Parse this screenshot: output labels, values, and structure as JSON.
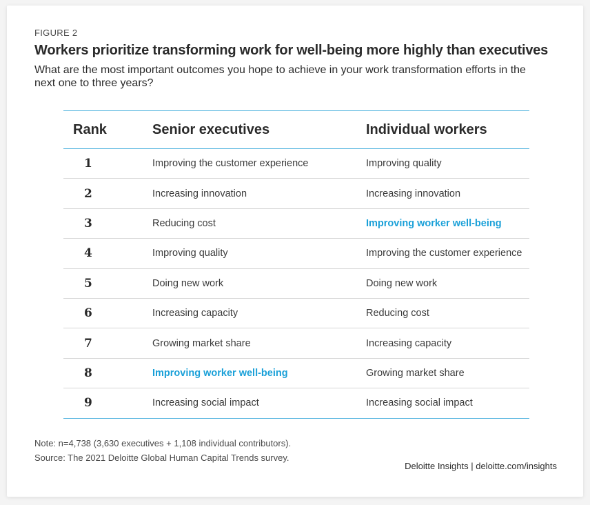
{
  "figure_label": "FIGURE 2",
  "title": "Workers prioritize transforming work for well-being more highly than executives",
  "subtitle": "What are the most important outcomes you hope to achieve in your work transformation efforts in the next one to three years?",
  "table": {
    "headers": {
      "rank": "Rank",
      "executives": "Senior executives",
      "workers": "Individual workers"
    },
    "highlight_color": "#1aa0d8",
    "rows": [
      {
        "rank": "1",
        "executives": "Improving the customer experience",
        "workers": "Improving quality",
        "exec_highlight": false,
        "work_highlight": false
      },
      {
        "rank": "2",
        "executives": "Increasing innovation",
        "workers": "Increasing innovation",
        "exec_highlight": false,
        "work_highlight": false
      },
      {
        "rank": "3",
        "executives": "Reducing cost",
        "workers": "Improving worker well-being",
        "exec_highlight": false,
        "work_highlight": true
      },
      {
        "rank": "4",
        "executives": "Improving quality",
        "workers": "Improving the customer experience",
        "exec_highlight": false,
        "work_highlight": false
      },
      {
        "rank": "5",
        "executives": "Doing new work",
        "workers": "Doing new work",
        "exec_highlight": false,
        "work_highlight": false
      },
      {
        "rank": "6",
        "executives": "Increasing capacity",
        "workers": "Reducing cost",
        "exec_highlight": false,
        "work_highlight": false
      },
      {
        "rank": "7",
        "executives": "Growing market share",
        "workers": "Increasing capacity",
        "exec_highlight": false,
        "work_highlight": false
      },
      {
        "rank": "8",
        "executives": "Improving worker well-being",
        "workers": "Growing market share",
        "exec_highlight": true,
        "work_highlight": false
      },
      {
        "rank": "9",
        "executives": "Increasing social impact",
        "workers": "Increasing social impact",
        "exec_highlight": false,
        "work_highlight": false
      }
    ]
  },
  "note": "Note: n=4,738 (3,630 executives + 1,108 individual contributors).",
  "source": "Source: The 2021 Deloitte Global Human Capital Trends survey.",
  "credit": "Deloitte Insights | deloitte.com/insights"
}
